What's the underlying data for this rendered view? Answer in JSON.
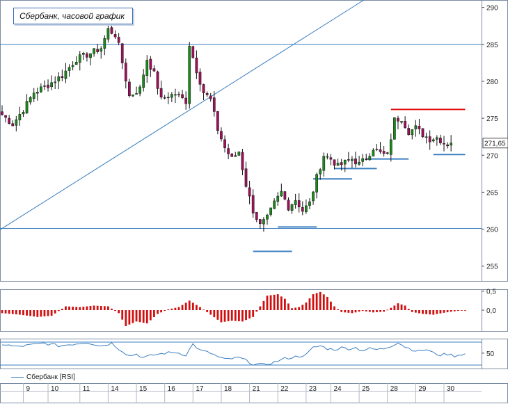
{
  "title": "Сбербанк, часовой график",
  "last_price_label": "271,65",
  "rsi_legend": "Сбербанк [RSI]",
  "colors": {
    "bull": "#1a8a1a",
    "bear": "#a0105a",
    "osc": "#d01010",
    "rsi": "#3a7fc0",
    "level": "#3a7fc0",
    "resistance": "#e01010"
  },
  "chart_data": [
    {
      "type": "candlestick",
      "title": "Сбербанк, часовой график",
      "ylim": [
        253,
        291
      ],
      "yticks": [
        255,
        260,
        265,
        270,
        275,
        280,
        285,
        290
      ],
      "x_labels": [
        "9",
        "10",
        "11",
        "14",
        "15",
        "16",
        "17",
        "18",
        "21",
        "22",
        "23",
        "24",
        "25",
        "28",
        "29",
        "30"
      ],
      "close_path": [
        [
          0,
          275.5
        ],
        [
          3,
          274.2
        ],
        [
          6,
          276.2
        ],
        [
          9,
          278.5
        ],
        [
          13,
          279.5
        ],
        [
          17,
          280.8
        ],
        [
          21,
          283.0
        ],
        [
          25,
          283.8
        ],
        [
          28,
          284.5
        ],
        [
          30,
          287.0
        ],
        [
          32,
          286.3
        ],
        [
          33,
          284.8
        ],
        [
          36,
          278.0
        ],
        [
          39,
          279.0
        ],
        [
          41,
          283.0
        ],
        [
          43,
          281.0
        ],
        [
          45,
          277.5
        ],
        [
          47,
          278.0
        ],
        [
          49,
          278.3
        ],
        [
          52,
          277.3
        ],
        [
          53,
          285.0
        ],
        [
          55,
          281.5
        ],
        [
          57,
          278.5
        ],
        [
          59,
          277.5
        ],
        [
          61,
          273.5
        ],
        [
          63,
          271.0
        ],
        [
          65,
          269.5
        ],
        [
          67,
          270.5
        ],
        [
          69,
          266.0
        ],
        [
          71,
          262.5
        ],
        [
          73,
          260.5
        ],
        [
          75,
          261.5
        ],
        [
          77,
          263.5
        ],
        [
          79,
          265.0
        ],
        [
          81,
          263.0
        ],
        [
          83,
          264.0
        ],
        [
          85,
          262.5
        ],
        [
          87,
          263.5
        ],
        [
          89,
          267.0
        ],
        [
          91,
          270.0
        ],
        [
          93,
          269.5
        ],
        [
          95,
          268.5
        ],
        [
          97,
          269.0
        ],
        [
          99,
          269.5
        ],
        [
          101,
          268.8
        ],
        [
          103,
          269.6
        ],
        [
          105,
          271.0
        ],
        [
          107,
          270.3
        ],
        [
          109,
          269.9
        ],
        [
          111,
          274.8
        ],
        [
          113,
          275.0
        ],
        [
          115,
          273.2
        ],
        [
          117,
          273.7
        ],
        [
          119,
          272.8
        ],
        [
          121,
          272.2
        ],
        [
          123,
          272.4
        ],
        [
          125,
          271.7
        ],
        [
          126,
          271.5
        ],
        [
          127,
          271.65
        ]
      ],
      "horizontal_levels": [
        {
          "y": 285.0,
          "color": "#3a7fc0",
          "span": "full"
        },
        {
          "y": 260.1,
          "color": "#3a7fc0",
          "span": "full"
        },
        {
          "y": 276.2,
          "color": "#e01010",
          "from": 110,
          "to": 131
        },
        {
          "y": 270.1,
          "color": "#3a7fc0",
          "from": 122,
          "to": 131
        },
        {
          "y": 269.5,
          "color": "#3a7fc0",
          "from": 103,
          "to": 115
        },
        {
          "y": 268.2,
          "color": "#3a7fc0",
          "from": 94,
          "to": 106
        },
        {
          "y": 266.8,
          "color": "#3a7fc0",
          "from": 88,
          "to": 99
        },
        {
          "y": 260.3,
          "color": "#3a7fc0",
          "from": 78,
          "to": 89
        },
        {
          "y": 257.0,
          "color": "#3a7fc0",
          "from": 71,
          "to": 82
        }
      ],
      "trendline": [
        [
          -3,
          259.2
        ],
        [
          104,
          291.5
        ]
      ],
      "last_price": 271.65
    },
    {
      "type": "bar",
      "name": "oscillator",
      "ylim": [
        -0.55,
        0.55
      ],
      "yticks": [
        0.5,
        0.0
      ],
      "ytick_labels": [
        "0,5",
        "0,0"
      ],
      "profile": [
        [
          0,
          -0.08
        ],
        [
          5,
          -0.12
        ],
        [
          10,
          -0.18
        ],
        [
          14,
          -0.15
        ],
        [
          18,
          0.1
        ],
        [
          22,
          0.08
        ],
        [
          26,
          0.12
        ],
        [
          30,
          0.1
        ],
        [
          33,
          -0.08
        ],
        [
          35,
          -0.42
        ],
        [
          38,
          -0.3
        ],
        [
          41,
          -0.35
        ],
        [
          44,
          -0.1
        ],
        [
          47,
          0.02
        ],
        [
          50,
          0.08
        ],
        [
          53,
          0.25
        ],
        [
          56,
          0.08
        ],
        [
          59,
          -0.12
        ],
        [
          62,
          -0.32
        ],
        [
          65,
          -0.28
        ],
        [
          68,
          -0.3
        ],
        [
          71,
          -0.18
        ],
        [
          73,
          0.1
        ],
        [
          75,
          0.38
        ],
        [
          78,
          0.42
        ],
        [
          80,
          0.3
        ],
        [
          82,
          0.05
        ],
        [
          84,
          0.08
        ],
        [
          86,
          0.2
        ],
        [
          88,
          0.42
        ],
        [
          90,
          0.48
        ],
        [
          92,
          0.35
        ],
        [
          94,
          0.1
        ],
        [
          96,
          -0.05
        ],
        [
          99,
          -0.08
        ],
        [
          102,
          -0.02
        ],
        [
          105,
          -0.06
        ],
        [
          108,
          -0.04
        ],
        [
          110,
          0.06
        ],
        [
          112,
          0.18
        ],
        [
          114,
          0.12
        ],
        [
          116,
          -0.05
        ],
        [
          119,
          -0.1
        ],
        [
          122,
          -0.12
        ],
        [
          125,
          -0.07
        ],
        [
          128,
          -0.03
        ],
        [
          131,
          0.0
        ]
      ]
    },
    {
      "type": "line",
      "name": "Сбербанк [RSI]",
      "ylim": [
        33,
        66
      ],
      "yticks": [
        50
      ],
      "ytick_labels": [
        "50"
      ],
      "reference_levels": [
        70,
        30
      ],
      "profile": [
        [
          0,
          60
        ],
        [
          4,
          57
        ],
        [
          8,
          59
        ],
        [
          12,
          61
        ],
        [
          16,
          58
        ],
        [
          20,
          60
        ],
        [
          24,
          62
        ],
        [
          28,
          58
        ],
        [
          31,
          61
        ],
        [
          33,
          55
        ],
        [
          36,
          47
        ],
        [
          38,
          49
        ],
        [
          40,
          45
        ],
        [
          43,
          48
        ],
        [
          46,
          50
        ],
        [
          49,
          51
        ],
        [
          52,
          48
        ],
        [
          54,
          60
        ],
        [
          56,
          53
        ],
        [
          59,
          50
        ],
        [
          61,
          46
        ],
        [
          63,
          43
        ],
        [
          65,
          44
        ],
        [
          67,
          45
        ],
        [
          69,
          42
        ],
        [
          71,
          38
        ],
        [
          74,
          37
        ],
        [
          77,
          40
        ],
        [
          80,
          44
        ],
        [
          83,
          46
        ],
        [
          86,
          48
        ],
        [
          88,
          56
        ],
        [
          90,
          58
        ],
        [
          92,
          55
        ],
        [
          94,
          54
        ],
        [
          96,
          56
        ],
        [
          98,
          55
        ],
        [
          100,
          56
        ],
        [
          102,
          53
        ],
        [
          104,
          55
        ],
        [
          106,
          54
        ],
        [
          108,
          55
        ],
        [
          110,
          58
        ],
        [
          112,
          62
        ],
        [
          114,
          57
        ],
        [
          116,
          54
        ],
        [
          118,
          52
        ],
        [
          120,
          54
        ],
        [
          122,
          50
        ],
        [
          124,
          48
        ],
        [
          126,
          49
        ],
        [
          128,
          47
        ],
        [
          130,
          49
        ]
      ]
    }
  ]
}
